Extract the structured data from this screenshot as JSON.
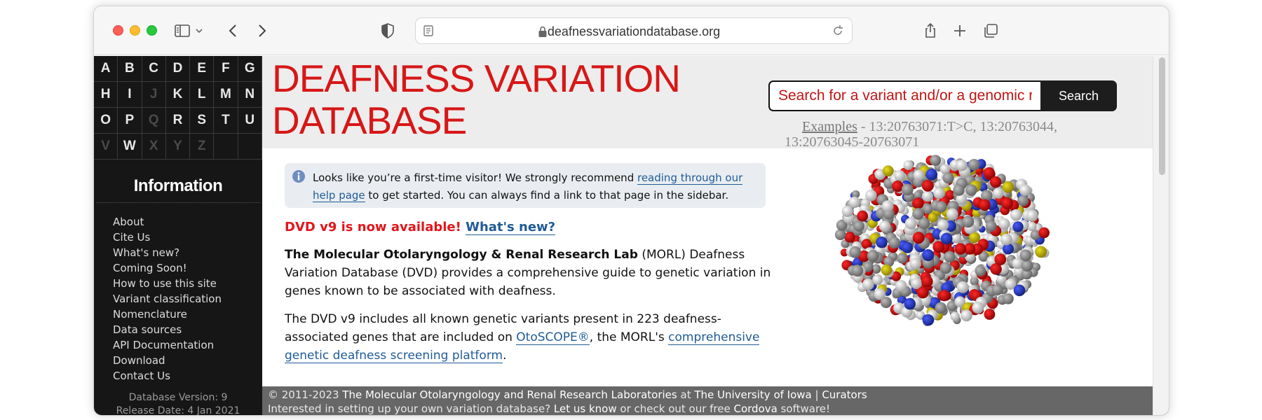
{
  "browser": {
    "url": "deafnessvariationdatabase.org"
  },
  "sidebar": {
    "letters": [
      {
        "l": "A",
        "on": true
      },
      {
        "l": "B",
        "on": true
      },
      {
        "l": "C",
        "on": true
      },
      {
        "l": "D",
        "on": true
      },
      {
        "l": "E",
        "on": true
      },
      {
        "l": "F",
        "on": true
      },
      {
        "l": "G",
        "on": true
      },
      {
        "l": "H",
        "on": true
      },
      {
        "l": "I",
        "on": true
      },
      {
        "l": "J",
        "on": false
      },
      {
        "l": "K",
        "on": true
      },
      {
        "l": "L",
        "on": true
      },
      {
        "l": "M",
        "on": true
      },
      {
        "l": "N",
        "on": true
      },
      {
        "l": "O",
        "on": true
      },
      {
        "l": "P",
        "on": true
      },
      {
        "l": "Q",
        "on": false
      },
      {
        "l": "R",
        "on": true
      },
      {
        "l": "S",
        "on": true
      },
      {
        "l": "T",
        "on": true
      },
      {
        "l": "U",
        "on": true
      },
      {
        "l": "V",
        "on": false
      },
      {
        "l": "W",
        "on": true
      },
      {
        "l": "X",
        "on": false
      },
      {
        "l": "Y",
        "on": false
      },
      {
        "l": "Z",
        "on": false
      },
      {
        "l": "",
        "on": false
      },
      {
        "l": "",
        "on": false
      }
    ],
    "heading": "Information",
    "links": [
      "About",
      "Cite Us",
      "What's new?",
      "Coming Soon!",
      "How to use this site",
      "Variant classification",
      "Nomenclature",
      "Data sources",
      "API Documentation",
      "Download",
      "Contact Us"
    ],
    "version": "Database Version: 9",
    "release": "Release Date: 4 Jan 2021"
  },
  "header": {
    "title_line1": "DEAFNESS VARIATION",
    "title_line2": "DATABASE",
    "search_placeholder": "Search for a variant and/or a genomic region",
    "search_button": "Search",
    "examples_label": "Examples",
    "examples_line1": " - 13:20763071:T>C, 13:20763044,",
    "examples_line2": "13:20763045-20763071"
  },
  "notice": {
    "before": "Looks like you’re a first-time visitor! We strongly recommend ",
    "link": "reading through our help page",
    "after": " to get started. You can always find a link to that page in the sidebar."
  },
  "main": {
    "announce_red": "DVD v9 is now available!",
    "announce_link": "What's new?",
    "p1_bold": "The Molecular Otolaryngology & Renal Research Lab",
    "p1_rest": " (MORL) Deafness Variation Database (DVD) provides a comprehensive guide to genetic variation in genes known to be associated with deafness.",
    "p2_a": "The DVD v9 includes all known genetic variants present in 223 deafness-associated genes that are included on ",
    "p2_link1": "OtoSCOPE®",
    "p2_b": ", the MORL's ",
    "p2_link2": "comprehensive genetic deafness screening platform",
    "p2_c": "."
  },
  "footer": {
    "l1_a": "© 2011-2023 ",
    "l1_b": "The Molecular Otolaryngology and Renal Research Laboratories",
    "l1_c": " at ",
    "l1_d": "The University of Iowa",
    "l1_e": " | ",
    "l1_f": "Curators",
    "l2_a": "Interested in setting up your own variation database? ",
    "l2_b": "Let us know",
    "l2_c": " or check out our free ",
    "l2_d": "Cordova",
    "l2_e": " software!"
  },
  "colors": {
    "title_red": "#d71717",
    "announce_red": "#e2161b",
    "link_blue": "#1f5b96",
    "sidebar_bg": "#161616"
  }
}
